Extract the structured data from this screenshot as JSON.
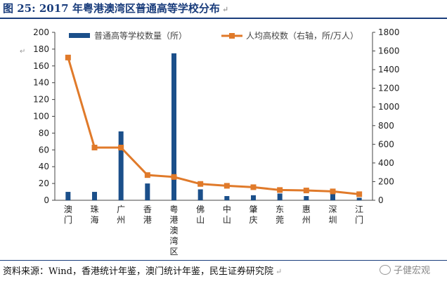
{
  "figure": {
    "title": "图 25: 2017 年粤港澳湾区普通高等学校分布",
    "source": "资料来源：Wind，香港统计年鉴，澳门统计年鉴，民生证券研究院",
    "watermark": "子健宏观",
    "return_mark": "↵",
    "bar_color": "#1b4f8a",
    "line_color": "#e07a2a"
  },
  "chart_data": {
    "type": "bar",
    "categories": [
      "澳门",
      "珠海",
      "广州",
      "香港",
      "粤港澳湾区",
      "佛山",
      "中山",
      "肇庆",
      "东莞",
      "惠州",
      "深圳",
      "江门"
    ],
    "series": [
      {
        "name": "普通高等学校数量（所）",
        "type": "bar",
        "axis": "left",
        "values": [
          10,
          10,
          82,
          20,
          175,
          13,
          5,
          6,
          8,
          5,
          8,
          3
        ]
      },
      {
        "name": "人均高校数（右轴，所/万人）",
        "type": "line",
        "axis": "right",
        "values": [
          1530,
          565,
          565,
          270,
          250,
          175,
          155,
          140,
          110,
          105,
          95,
          65
        ]
      }
    ],
    "ylim": [
      0,
      200
    ],
    "yticks": [
      0,
      20,
      40,
      60,
      80,
      100,
      120,
      140,
      160,
      180,
      200
    ],
    "y2lim": [
      0,
      1800
    ],
    "y2ticks": [
      0,
      200,
      400,
      600,
      800,
      1000,
      1200,
      1400,
      1600,
      1800
    ],
    "legend_position": "top",
    "grid": false
  }
}
